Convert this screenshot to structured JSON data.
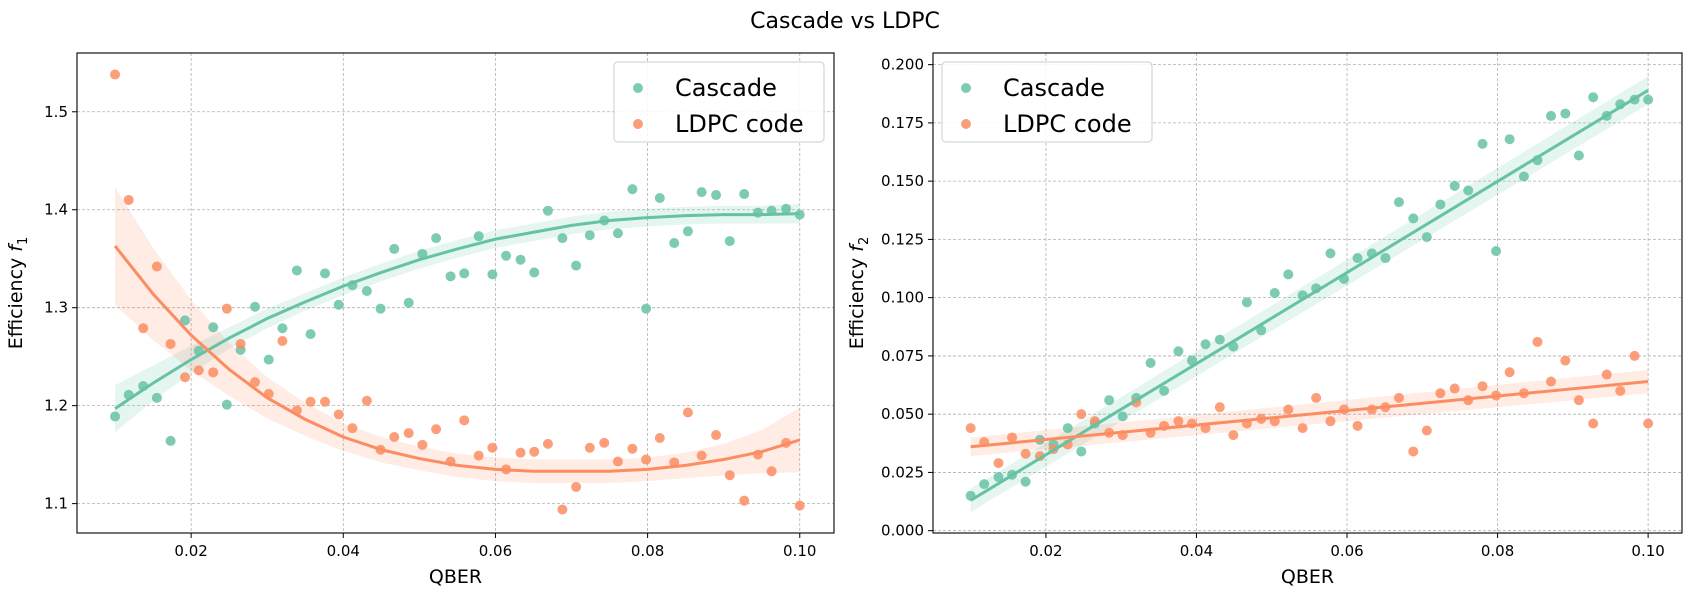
{
  "figure": {
    "title": "Cascade vs LDPC"
  },
  "colors": {
    "cascade": "#66c2a5",
    "ldpc": "#fc8d62"
  },
  "chart_data": [
    {
      "type": "scatter",
      "xlabel": "QBER",
      "ylabel_text": "Efficiency ",
      "ylabel_sym": "f",
      "ylabel_sub": "1",
      "xlim": [
        0.005,
        0.1045
      ],
      "ylim": [
        1.07,
        1.56
      ],
      "xticks": [
        0.02,
        0.04,
        0.06,
        0.08,
        0.1
      ],
      "xtick_labels": [
        "0.02",
        "0.04",
        "0.06",
        "0.08",
        "0.10"
      ],
      "yticks": [
        1.1,
        1.2,
        1.3,
        1.4,
        1.5
      ],
      "ytick_labels": [
        "1.1",
        "1.2",
        "1.3",
        "1.4",
        "1.5"
      ],
      "grid": true,
      "legend": "upper-right",
      "series": [
        {
          "name": "Cascade",
          "color": "#66c2a5",
          "x": [
            0.01,
            0.0118,
            0.0137,
            0.0155,
            0.0173,
            0.0192,
            0.021,
            0.0229,
            0.0247,
            0.0265,
            0.0284,
            0.0302,
            0.032,
            0.0339,
            0.0357,
            0.0376,
            0.0394,
            0.0412,
            0.0431,
            0.0449,
            0.0467,
            0.0486,
            0.0504,
            0.0522,
            0.0541,
            0.0559,
            0.0578,
            0.0596,
            0.0614,
            0.0633,
            0.0651,
            0.0669,
            0.0688,
            0.0706,
            0.0724,
            0.0743,
            0.0761,
            0.078,
            0.0798,
            0.0816,
            0.0835,
            0.0853,
            0.0871,
            0.089,
            0.0908,
            0.0927,
            0.0945,
            0.0963,
            0.0982,
            0.1
          ],
          "y": [
            1.189,
            1.211,
            1.22,
            1.208,
            1.164,
            1.287,
            1.256,
            1.28,
            1.201,
            1.257,
            1.301,
            1.247,
            1.279,
            1.338,
            1.273,
            1.335,
            1.303,
            1.323,
            1.317,
            1.299,
            1.36,
            1.305,
            1.355,
            1.371,
            1.332,
            1.335,
            1.373,
            1.334,
            1.353,
            1.349,
            1.336,
            1.399,
            1.371,
            1.343,
            1.374,
            1.389,
            1.376,
            1.421,
            1.299,
            1.412,
            1.366,
            1.378,
            1.418,
            1.415,
            1.368,
            1.416,
            1.397,
            1.399,
            1.401,
            1.395
          ],
          "fit_x": [
            0.01,
            0.015,
            0.02,
            0.025,
            0.03,
            0.035,
            0.04,
            0.045,
            0.05,
            0.055,
            0.06,
            0.065,
            0.07,
            0.075,
            0.08,
            0.085,
            0.09,
            0.095,
            0.1
          ],
          "fit_y": [
            1.197,
            1.223,
            1.247,
            1.269,
            1.289,
            1.306,
            1.322,
            1.336,
            1.349,
            1.36,
            1.37,
            1.377,
            1.384,
            1.389,
            1.392,
            1.394,
            1.395,
            1.395,
            1.396
          ],
          "ci_half": [
            0.024,
            0.018,
            0.014,
            0.011,
            0.01,
            0.009,
            0.009,
            0.009,
            0.009,
            0.009,
            0.009,
            0.009,
            0.009,
            0.009,
            0.009,
            0.009,
            0.009,
            0.009,
            0.01
          ]
        },
        {
          "name": "LDPC code",
          "color": "#fc8d62",
          "x": [
            0.01,
            0.0118,
            0.0137,
            0.0155,
            0.0173,
            0.0192,
            0.021,
            0.0229,
            0.0247,
            0.0265,
            0.0284,
            0.0302,
            0.032,
            0.0339,
            0.0357,
            0.0376,
            0.0394,
            0.0412,
            0.0431,
            0.0449,
            0.0467,
            0.0486,
            0.0504,
            0.0522,
            0.0541,
            0.0559,
            0.0578,
            0.0596,
            0.0614,
            0.0633,
            0.0651,
            0.0669,
            0.0688,
            0.0706,
            0.0724,
            0.0743,
            0.0761,
            0.078,
            0.0798,
            0.0816,
            0.0835,
            0.0853,
            0.0871,
            0.089,
            0.0908,
            0.0927,
            0.0945,
            0.0963,
            0.0982,
            0.1
          ],
          "y": [
            1.538,
            1.41,
            1.279,
            1.342,
            1.263,
            1.229,
            1.236,
            1.234,
            1.299,
            1.263,
            1.224,
            1.212,
            1.266,
            1.195,
            1.204,
            1.204,
            1.191,
            1.177,
            1.205,
            1.155,
            1.168,
            1.172,
            1.16,
            1.176,
            1.143,
            1.185,
            1.149,
            1.157,
            1.135,
            1.152,
            1.153,
            1.161,
            1.094,
            1.117,
            1.157,
            1.162,
            1.143,
            1.156,
            1.145,
            1.167,
            1.142,
            1.193,
            1.149,
            1.17,
            1.129,
            1.103,
            1.15,
            1.133,
            1.162,
            1.098
          ],
          "fit_x": [
            0.01,
            0.015,
            0.02,
            0.025,
            0.03,
            0.035,
            0.04,
            0.045,
            0.05,
            0.055,
            0.06,
            0.065,
            0.07,
            0.075,
            0.08,
            0.085,
            0.09,
            0.095,
            0.1
          ],
          "fit_y": [
            1.363,
            1.314,
            1.272,
            1.237,
            1.208,
            1.186,
            1.168,
            1.155,
            1.146,
            1.139,
            1.135,
            1.133,
            1.133,
            1.133,
            1.135,
            1.139,
            1.145,
            1.153,
            1.165
          ],
          "ci_half": [
            0.06,
            0.047,
            0.036,
            0.027,
            0.021,
            0.017,
            0.014,
            0.013,
            0.012,
            0.012,
            0.012,
            0.012,
            0.012,
            0.012,
            0.012,
            0.013,
            0.016,
            0.022,
            0.033
          ]
        }
      ]
    },
    {
      "type": "scatter",
      "xlabel": "QBER",
      "ylabel_text": "Efficiency ",
      "ylabel_sym": "f",
      "ylabel_sub": "2",
      "xlim": [
        0.005,
        0.1045
      ],
      "ylim": [
        -0.001,
        0.205
      ],
      "xticks": [
        0.02,
        0.04,
        0.06,
        0.08,
        0.1
      ],
      "xtick_labels": [
        "0.02",
        "0.04",
        "0.06",
        "0.08",
        "0.10"
      ],
      "yticks": [
        0.0,
        0.025,
        0.05,
        0.075,
        0.1,
        0.125,
        0.15,
        0.175,
        0.2
      ],
      "ytick_labels": [
        "0.000",
        "0.025",
        "0.050",
        "0.075",
        "0.100",
        "0.125",
        "0.150",
        "0.175",
        "0.200"
      ],
      "grid": true,
      "legend": "upper-left",
      "series": [
        {
          "name": "Cascade",
          "color": "#66c2a5",
          "x": [
            0.01,
            0.0118,
            0.0137,
            0.0155,
            0.0173,
            0.0192,
            0.021,
            0.0229,
            0.0247,
            0.0265,
            0.0284,
            0.0302,
            0.032,
            0.0339,
            0.0357,
            0.0376,
            0.0394,
            0.0412,
            0.0431,
            0.0449,
            0.0467,
            0.0486,
            0.0504,
            0.0522,
            0.0541,
            0.0559,
            0.0578,
            0.0596,
            0.0614,
            0.0633,
            0.0651,
            0.0669,
            0.0688,
            0.0706,
            0.0724,
            0.0743,
            0.0761,
            0.078,
            0.0798,
            0.0816,
            0.0835,
            0.0853,
            0.0871,
            0.089,
            0.0908,
            0.0927,
            0.0945,
            0.0963,
            0.0982,
            0.1
          ],
          "y": [
            0.015,
            0.02,
            0.023,
            0.024,
            0.021,
            0.039,
            0.037,
            0.044,
            0.034,
            0.046,
            0.056,
            0.049,
            0.057,
            0.072,
            0.06,
            0.077,
            0.073,
            0.08,
            0.082,
            0.079,
            0.098,
            0.086,
            0.102,
            0.11,
            0.101,
            0.104,
            0.119,
            0.108,
            0.117,
            0.119,
            0.117,
            0.141,
            0.134,
            0.126,
            0.14,
            0.148,
            0.146,
            0.166,
            0.12,
            0.168,
            0.152,
            0.159,
            0.178,
            0.179,
            0.161,
            0.186,
            0.178,
            0.183,
            0.185,
            0.185
          ],
          "fit_x": [
            0.01,
            0.1
          ],
          "fit_y": [
            0.013,
            0.189
          ],
          "ci_half": [
            0.005,
            0.006
          ]
        },
        {
          "name": "LDPC code",
          "color": "#fc8d62",
          "x": [
            0.01,
            0.0118,
            0.0137,
            0.0155,
            0.0173,
            0.0192,
            0.021,
            0.0229,
            0.0247,
            0.0265,
            0.0284,
            0.0302,
            0.032,
            0.0339,
            0.0357,
            0.0376,
            0.0394,
            0.0412,
            0.0431,
            0.0449,
            0.0467,
            0.0486,
            0.0504,
            0.0522,
            0.0541,
            0.0559,
            0.0578,
            0.0596,
            0.0614,
            0.0633,
            0.0651,
            0.0669,
            0.0688,
            0.0706,
            0.0724,
            0.0743,
            0.0761,
            0.078,
            0.0798,
            0.0816,
            0.0835,
            0.0853,
            0.0871,
            0.089,
            0.0908,
            0.0927,
            0.0945,
            0.0963,
            0.0982,
            0.1
          ],
          "y": [
            0.044,
            0.038,
            0.029,
            0.04,
            0.033,
            0.032,
            0.035,
            0.037,
            0.05,
            0.047,
            0.042,
            0.041,
            0.055,
            0.042,
            0.045,
            0.047,
            0.046,
            0.044,
            0.053,
            0.041,
            0.046,
            0.048,
            0.047,
            0.052,
            0.044,
            0.057,
            0.047,
            0.052,
            0.045,
            0.052,
            0.053,
            0.057,
            0.034,
            0.043,
            0.059,
            0.061,
            0.056,
            0.062,
            0.058,
            0.068,
            0.059,
            0.081,
            0.064,
            0.073,
            0.056,
            0.046,
            0.067,
            0.06,
            0.075,
            0.046
          ],
          "fit_x": [
            0.01,
            0.1
          ],
          "fit_y": [
            0.036,
            0.064
          ],
          "ci_half": [
            0.004,
            0.005
          ]
        }
      ]
    }
  ]
}
